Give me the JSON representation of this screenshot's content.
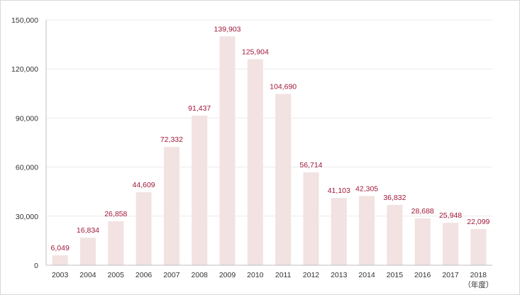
{
  "chart_data": {
    "type": "bar",
    "categories": [
      "2003",
      "2004",
      "2005",
      "2006",
      "2007",
      "2008",
      "2009",
      "2010",
      "2011",
      "2012",
      "2013",
      "2014",
      "2015",
      "2016",
      "2017",
      "2018"
    ],
    "values": [
      6049,
      16834,
      26858,
      44609,
      72332,
      91437,
      139903,
      125904,
      104690,
      56714,
      41103,
      42305,
      36832,
      28688,
      25948,
      22099
    ],
    "data_labels": [
      "6,049",
      "16,834",
      "26,858",
      "44,609",
      "72,332",
      "91,437",
      "139,903",
      "125,904",
      "104,690",
      "56,714",
      "41,103",
      "42,305",
      "36,832",
      "28,688",
      "25,948",
      "22,099"
    ],
    "y_ticks": [
      "0",
      "30,000",
      "60,000",
      "90,000",
      "120,000",
      "150,000"
    ],
    "y_tick_values": [
      0,
      30000,
      60000,
      90000,
      120000,
      150000
    ],
    "ylim": [
      0,
      150000
    ],
    "x_unit_label": "（年度）",
    "title": "",
    "xlabel": "",
    "ylabel": "",
    "grid": true,
    "legend": "none",
    "colors": {
      "bar": "#f2e2e2",
      "data_label": "#a0173a",
      "gridline": "#ececec",
      "axis": "#bfbfbf",
      "tick_text": "#333333"
    }
  }
}
